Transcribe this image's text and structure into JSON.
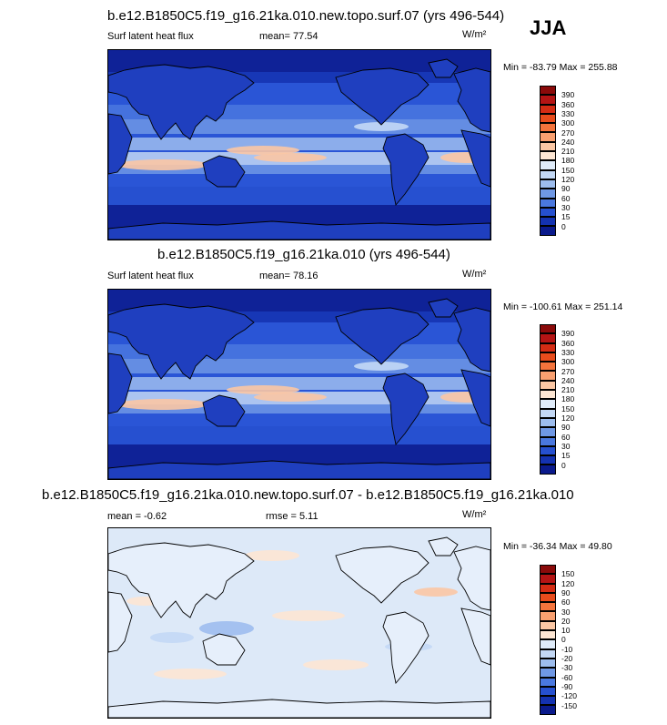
{
  "season": "JJA",
  "panels": [
    {
      "title": "b.e12.B1850C5.f19_g16.21ka.010.new.topo.surf.07 (yrs 496-544)",
      "left_label": "Surf latent heat flux",
      "center_label": "mean=  77.54",
      "units": "W/m²",
      "minmax": "Min = -83.79 Max = 255.88",
      "colorbar_labels": [
        "390",
        "360",
        "330",
        "300",
        "270",
        "240",
        "210",
        "180",
        "150",
        "120",
        "90",
        "60",
        "30",
        "15",
        "0"
      ],
      "colorbar_colors": [
        "#8a0a0a",
        "#b41414",
        "#d42c14",
        "#e84c1c",
        "#f4743c",
        "#f9a070",
        "#fbc7a4",
        "#fde6d3",
        "#e0ecfa",
        "#c3d8f5",
        "#9dbdee",
        "#6f98e5",
        "#4a78df",
        "#2650cf",
        "#1432b0",
        "#0a1a8c"
      ],
      "map_style": "abs"
    },
    {
      "title": "b.e12.B1850C5.f19_g16.21ka.010 (yrs 496-544)",
      "left_label": "Surf latent heat flux",
      "center_label": "mean=  78.16",
      "units": "W/m²",
      "minmax": "Min = -100.61 Max = 251.14",
      "colorbar_labels": [
        "390",
        "360",
        "330",
        "300",
        "270",
        "240",
        "210",
        "180",
        "150",
        "120",
        "90",
        "60",
        "30",
        "15",
        "0"
      ],
      "colorbar_colors": [
        "#8a0a0a",
        "#b41414",
        "#d42c14",
        "#e84c1c",
        "#f4743c",
        "#f9a070",
        "#fbc7a4",
        "#fde6d3",
        "#e0ecfa",
        "#c3d8f5",
        "#9dbdee",
        "#6f98e5",
        "#4a78df",
        "#2650cf",
        "#1432b0",
        "#0a1a8c"
      ],
      "map_style": "abs"
    },
    {
      "title": "b.e12.B1850C5.f19_g16.21ka.010.new.topo.surf.07 - b.e12.B1850C5.f19_g16.21ka.010",
      "left_label": "mean =  -0.62",
      "center_label": "rmse =   5.11",
      "units": "W/m²",
      "minmax": "Min = -36.34 Max =  49.80",
      "colorbar_labels": [
        "150",
        "120",
        "90",
        "60",
        "30",
        "20",
        "10",
        "0",
        "-10",
        "-20",
        "-30",
        "-60",
        "-90",
        "-120",
        "-150"
      ],
      "colorbar_colors": [
        "#8a0a0a",
        "#b41414",
        "#d42c14",
        "#e84c1c",
        "#f4743c",
        "#f9a070",
        "#fbc7a4",
        "#fde6d3",
        "#e0ecfa",
        "#c3d8f5",
        "#9dbdee",
        "#6f98e5",
        "#4a78df",
        "#2650cf",
        "#1432b0",
        "#0a1a8c"
      ],
      "map_style": "diff"
    }
  ]
}
